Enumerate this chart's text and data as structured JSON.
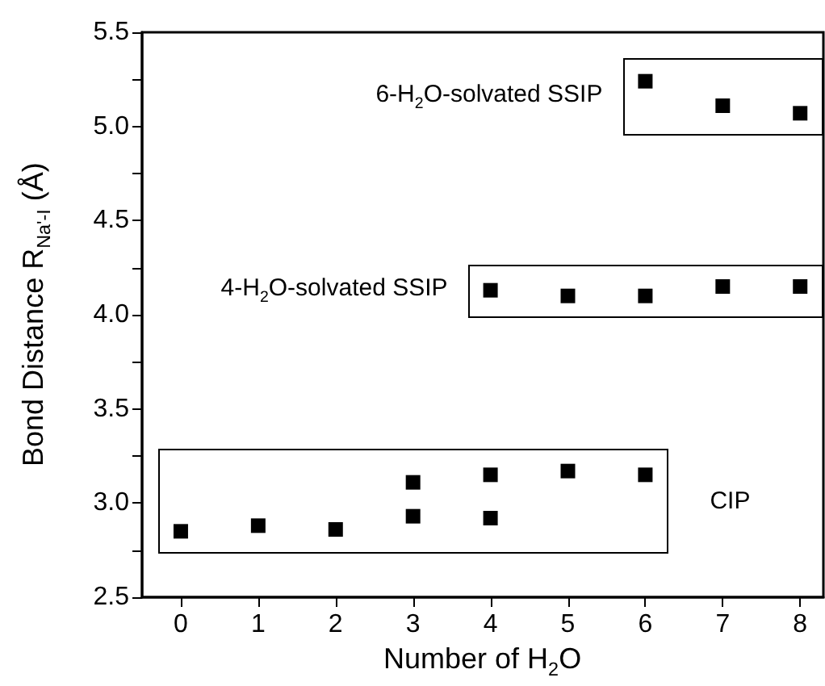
{
  "chart_data": {
    "type": "scatter",
    "xlabel": "Number of H$_{2}$O",
    "ylabel": "Bond Distance R$_{Na'-I}$ (Å)",
    "annotations": [
      "6-H$_{2}$O-solvated SSIP",
      "4-H$_{2}$O-solvated SSIP",
      "CIP"
    ],
    "series": [
      {
        "color": "#000000",
        "x": [
          6,
          7,
          8
        ],
        "values": [
          5.24,
          5.11,
          5.07
        ]
      },
      {
        "color": "#000000",
        "x": [
          4,
          5,
          6,
          7,
          8
        ],
        "values": [
          4.13,
          4.1,
          4.1,
          4.15,
          4.15
        ]
      },
      {
        "color": "#000000",
        "x": [
          0,
          1,
          2,
          3,
          3,
          4,
          4,
          5,
          6
        ],
        "values": [
          2.85,
          2.88,
          2.86,
          2.93,
          3.11,
          2.92,
          3.15,
          3.17,
          3.15
        ]
      }
    ],
    "xlim": [
      -0.5,
      8.3
    ],
    "xticks": [
      0,
      1,
      2,
      3,
      4,
      5,
      6,
      7,
      8
    ],
    "ylim": [
      2.5,
      5.5
    ],
    "yticks": [
      2.5,
      {
        "value": 3,
        "label": "3.0"
      },
      3.5,
      {
        "value": 4,
        "label": "4.0"
      },
      4.5,
      {
        "value": 5,
        "label": "5.0"
      },
      5.5
    ],
    "grid": false,
    "marker": "square"
  }
}
